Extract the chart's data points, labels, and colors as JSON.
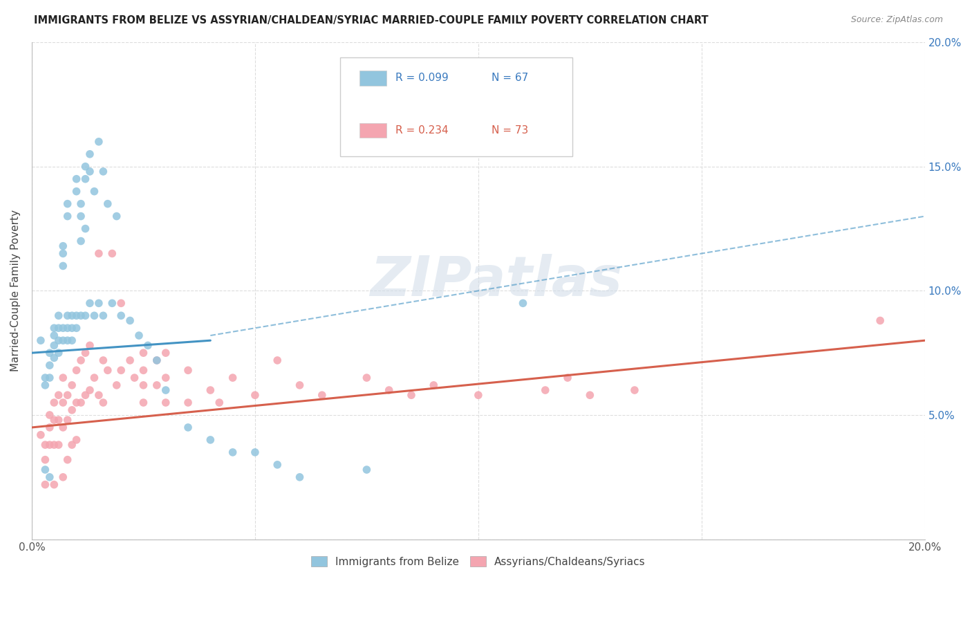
{
  "title": "IMMIGRANTS FROM BELIZE VS ASSYRIAN/CHALDEAN/SYRIAC MARRIED-COUPLE FAMILY POVERTY CORRELATION CHART",
  "source": "Source: ZipAtlas.com",
  "ylabel": "Married-Couple Family Poverty",
  "xlim": [
    0.0,
    0.2
  ],
  "ylim": [
    0.0,
    0.2
  ],
  "legend_blue_R": "R = 0.099",
  "legend_blue_N": "N = 67",
  "legend_pink_R": "R = 0.234",
  "legend_pink_N": "N = 73",
  "legend_blue_label": "Immigrants from Belize",
  "legend_pink_label": "Assyrians/Chaldeans/Syriacs",
  "blue_color": "#92c5de",
  "pink_color": "#f4a5b0",
  "blue_line_color": "#4393c3",
  "pink_line_color": "#d6604d",
  "watermark": "ZIPatlas",
  "blue_scatter_x": [
    0.002,
    0.003,
    0.003,
    0.003,
    0.004,
    0.004,
    0.004,
    0.004,
    0.005,
    0.005,
    0.005,
    0.005,
    0.006,
    0.006,
    0.006,
    0.006,
    0.007,
    0.007,
    0.007,
    0.007,
    0.007,
    0.008,
    0.008,
    0.008,
    0.008,
    0.008,
    0.009,
    0.009,
    0.009,
    0.01,
    0.01,
    0.01,
    0.01,
    0.011,
    0.011,
    0.011,
    0.011,
    0.012,
    0.012,
    0.012,
    0.012,
    0.013,
    0.013,
    0.013,
    0.014,
    0.014,
    0.015,
    0.015,
    0.016,
    0.016,
    0.017,
    0.018,
    0.019,
    0.02,
    0.022,
    0.024,
    0.026,
    0.028,
    0.03,
    0.035,
    0.04,
    0.045,
    0.05,
    0.055,
    0.06,
    0.075,
    0.11
  ],
  "blue_scatter_y": [
    0.08,
    0.065,
    0.062,
    0.028,
    0.075,
    0.07,
    0.065,
    0.025,
    0.085,
    0.082,
    0.078,
    0.073,
    0.09,
    0.085,
    0.08,
    0.075,
    0.118,
    0.115,
    0.11,
    0.085,
    0.08,
    0.135,
    0.13,
    0.09,
    0.085,
    0.08,
    0.09,
    0.085,
    0.08,
    0.145,
    0.14,
    0.09,
    0.085,
    0.135,
    0.13,
    0.12,
    0.09,
    0.15,
    0.145,
    0.125,
    0.09,
    0.155,
    0.148,
    0.095,
    0.14,
    0.09,
    0.16,
    0.095,
    0.148,
    0.09,
    0.135,
    0.095,
    0.13,
    0.09,
    0.088,
    0.082,
    0.078,
    0.072,
    0.06,
    0.045,
    0.04,
    0.035,
    0.035,
    0.03,
    0.025,
    0.028,
    0.095
  ],
  "pink_scatter_x": [
    0.002,
    0.003,
    0.003,
    0.003,
    0.004,
    0.004,
    0.004,
    0.005,
    0.005,
    0.005,
    0.005,
    0.006,
    0.006,
    0.006,
    0.007,
    0.007,
    0.007,
    0.007,
    0.008,
    0.008,
    0.008,
    0.009,
    0.009,
    0.009,
    0.01,
    0.01,
    0.01,
    0.011,
    0.011,
    0.012,
    0.012,
    0.013,
    0.013,
    0.014,
    0.015,
    0.015,
    0.016,
    0.016,
    0.017,
    0.018,
    0.019,
    0.02,
    0.02,
    0.022,
    0.023,
    0.025,
    0.025,
    0.025,
    0.025,
    0.028,
    0.028,
    0.03,
    0.03,
    0.03,
    0.035,
    0.035,
    0.04,
    0.042,
    0.045,
    0.05,
    0.055,
    0.06,
    0.065,
    0.075,
    0.08,
    0.085,
    0.09,
    0.1,
    0.115,
    0.12,
    0.125,
    0.135,
    0.19
  ],
  "pink_scatter_y": [
    0.042,
    0.038,
    0.032,
    0.022,
    0.05,
    0.045,
    0.038,
    0.055,
    0.048,
    0.038,
    0.022,
    0.058,
    0.048,
    0.038,
    0.065,
    0.055,
    0.045,
    0.025,
    0.058,
    0.048,
    0.032,
    0.062,
    0.052,
    0.038,
    0.068,
    0.055,
    0.04,
    0.072,
    0.055,
    0.075,
    0.058,
    0.078,
    0.06,
    0.065,
    0.115,
    0.058,
    0.072,
    0.055,
    0.068,
    0.115,
    0.062,
    0.095,
    0.068,
    0.072,
    0.065,
    0.075,
    0.068,
    0.062,
    0.055,
    0.072,
    0.062,
    0.075,
    0.065,
    0.055,
    0.068,
    0.055,
    0.06,
    0.055,
    0.065,
    0.058,
    0.072,
    0.062,
    0.058,
    0.065,
    0.06,
    0.058,
    0.062,
    0.058,
    0.06,
    0.065,
    0.058,
    0.06,
    0.088
  ],
  "blue_line_x0": 0.0,
  "blue_line_y0": 0.075,
  "blue_line_x1": 0.2,
  "blue_line_y1": 0.1,
  "pink_line_x0": 0.0,
  "pink_line_y0": 0.045,
  "pink_line_x1": 0.2,
  "pink_line_y1": 0.08,
  "dash_line_x0": 0.04,
  "dash_line_y0": 0.082,
  "dash_line_x1": 0.2,
  "dash_line_y1": 0.13
}
